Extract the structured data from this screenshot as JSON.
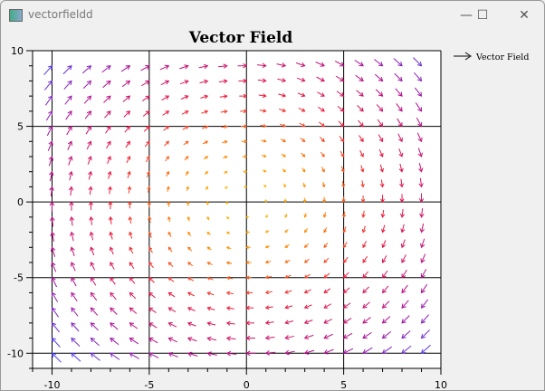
{
  "window": {
    "title": "vectorfieldd",
    "minimize": "—",
    "maximize": "☐",
    "close": "✕"
  },
  "chart_data": {
    "type": "quiver",
    "title": "Vector Field",
    "legend": {
      "label": "Vector Field",
      "placement": "right"
    },
    "x": [
      -10,
      -9,
      -8,
      -7,
      -6,
      -5,
      -4,
      -3,
      -2,
      -1,
      0,
      1,
      2,
      3,
      4,
      5,
      6,
      7,
      8,
      9
    ],
    "y": [
      -10,
      -9,
      -8,
      -7,
      -6,
      -5,
      -4,
      -3,
      -2,
      -1,
      0,
      1,
      2,
      3,
      4,
      5,
      6,
      7,
      8,
      9
    ],
    "field": {
      "u": "y",
      "v": "-x"
    },
    "xlim": [
      -11,
      10
    ],
    "ylim": [
      -11,
      10
    ],
    "xticks": [
      "-10",
      "-5",
      "0",
      "5",
      "10"
    ],
    "yticks": [
      "10",
      "5",
      "0",
      "-5",
      "-10"
    ],
    "grid": true,
    "colormap": [
      "#ffd000",
      "#ff8a00",
      "#f01838",
      "#b01090",
      "#4040ff"
    ]
  }
}
